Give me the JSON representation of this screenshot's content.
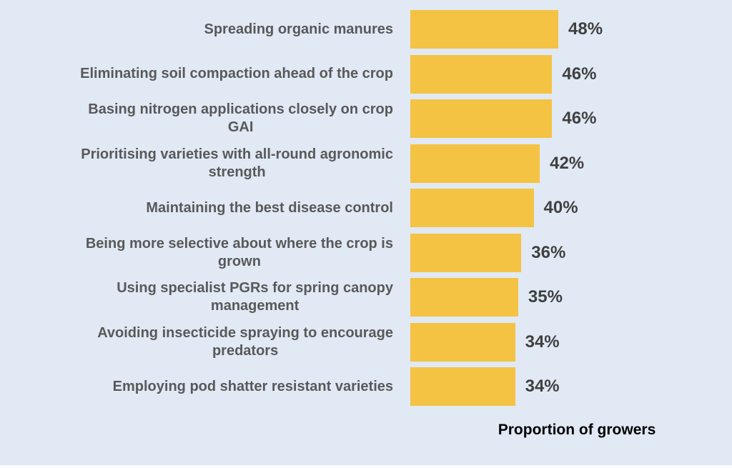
{
  "chart_data": {
    "type": "bar",
    "orientation": "horizontal",
    "title": "",
    "xlabel": "Proportion of growers",
    "ylabel": "",
    "unit": "%",
    "axis_max": 48,
    "grid": false,
    "legend": "none",
    "categories": [
      "Spreading organic manures",
      "Eliminating soil compaction ahead of the crop",
      "Basing nitrogen applications closely on crop\nGAI",
      "Prioritising varieties with all-round agronomic\nstrength",
      "Maintaining the best disease control",
      "Being more selective about where the crop is\ngrown",
      "Using specialist PGRs for spring canopy\nmanagement",
      "Avoiding insecticide spraying to encourage\npredators",
      "Employing pod shatter resistant varieties"
    ],
    "values": [
      48,
      46,
      46,
      42,
      40,
      36,
      35,
      34,
      34
    ],
    "value_labels": [
      "48%",
      "46%",
      "46%",
      "42%",
      "40%",
      "36%",
      "35%",
      "34%",
      "34%"
    ]
  },
  "colors": {
    "background": "#E0E9F4",
    "bar": "#F4C343",
    "category_text": "#595959",
    "value_text": "#404040",
    "axis_label_text": "#000000"
  }
}
